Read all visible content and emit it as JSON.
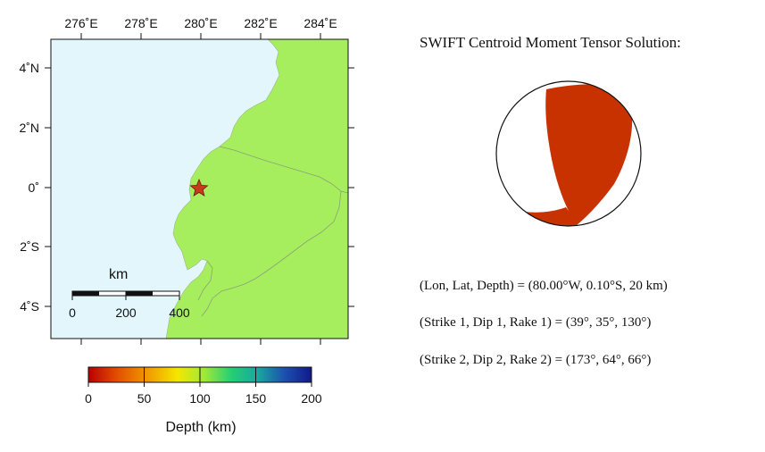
{
  "map": {
    "top_tick_labels": [
      "276˚E",
      "278˚E",
      "280˚E",
      "282˚E",
      "284˚E"
    ],
    "left_tick_labels": [
      "4˚N",
      "2˚N",
      "0˚",
      "2˚S",
      "4˚S"
    ],
    "colors": {
      "ocean": "#e2f6fb",
      "land": "#a6ee5e",
      "border": "#8aa07a",
      "epicenter": "#c83a1e"
    },
    "epicenter_marker": "star-icon",
    "scale_bar": {
      "title": "km",
      "labels": [
        "0",
        "200",
        "400"
      ]
    }
  },
  "colorbar": {
    "tick_labels": [
      "0",
      "50",
      "100",
      "150",
      "200"
    ],
    "label": "Depth (km)",
    "gradient_colors": [
      "#b80000",
      "#e04a00",
      "#f2a200",
      "#f4e700",
      "#9fe83a",
      "#26cf74",
      "#1aa6a0",
      "#1c4fb0",
      "#12188a"
    ]
  },
  "cmt": {
    "title": "SWIFT Centroid Moment Tensor Solution:",
    "beachball_color": "#c83200",
    "location": "(Lon, Lat, Depth) = (80.00°W, 0.10°S, 20 km)",
    "nodal_plane_1": "(Strike 1, Dip 1, Rake 1) = (39°, 35°, 130°)",
    "nodal_plane_2": "(Strike 2, Dip 2, Rake 2) = (173°, 64°, 66°)"
  }
}
